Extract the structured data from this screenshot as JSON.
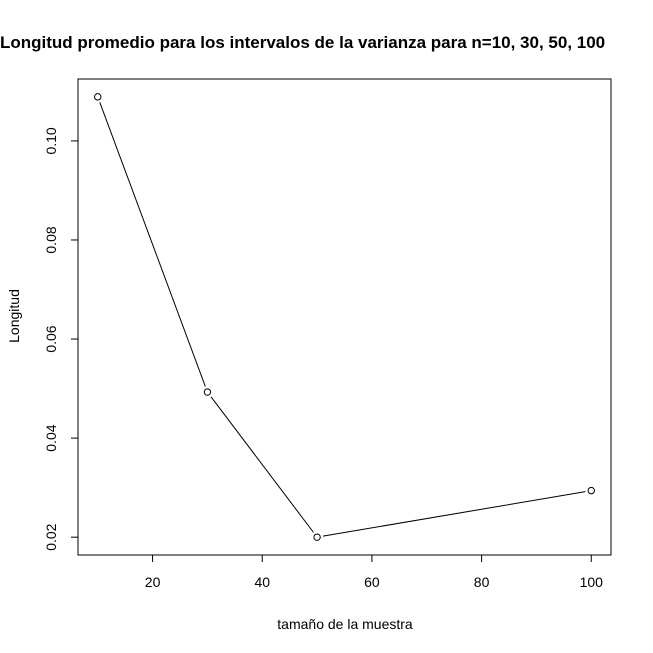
{
  "chart_data": {
    "type": "line",
    "title": "Longitud promedio para los intervalos de la varianza para n=10, 30, 50, 100",
    "xlabel": "tamaño de la muestra",
    "ylabel": "Longitud",
    "x": [
      10,
      30,
      50,
      100
    ],
    "series": [
      {
        "values": [
          0.1089,
          0.0493,
          0.02,
          0.0294
        ]
      }
    ],
    "xlim": [
      6.4,
      103.6
    ],
    "ylim": [
      0.0164,
      0.1125
    ],
    "xticks": [
      "20",
      "40",
      "60",
      "80",
      "100"
    ],
    "yticks": [
      "0.02",
      "0.04",
      "0.06",
      "0.08",
      "0.10"
    ],
    "grid": false,
    "marker": "open-circle",
    "line_color": "#000000"
  }
}
